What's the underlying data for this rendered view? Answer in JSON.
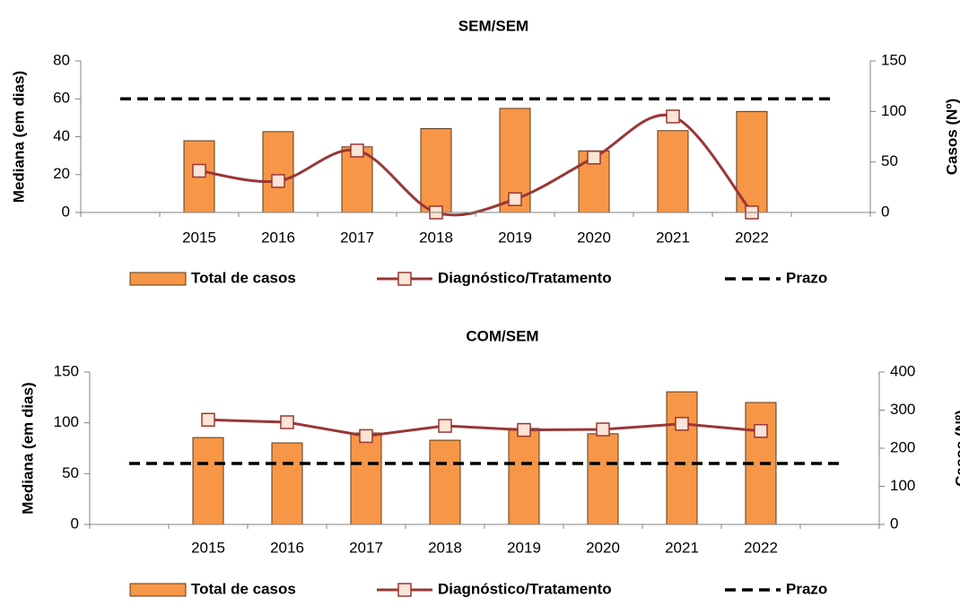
{
  "chart_data": [
    {
      "type": "bar-line",
      "title": "SEM/SEM",
      "ylabel": "Mediana (em dias)",
      "y2label": "Casos (Nº)",
      "categories": [
        null,
        "2015",
        "2016",
        "2017",
        "2018",
        "2019",
        "2020",
        "2021",
        "2022",
        null
      ],
      "series": [
        {
          "name": "Total de casos",
          "type": "bar",
          "axis": "y2",
          "color": "#f79646",
          "values": [
            null,
            71,
            80,
            65,
            83,
            103,
            61,
            81,
            100,
            null
          ]
        },
        {
          "name": "Diagnóstico/Tratamento",
          "type": "line",
          "smooth": true,
          "color": "#993737",
          "values": [
            null,
            22,
            16.6,
            32.7,
            0,
            7,
            29,
            50.7,
            0,
            null
          ]
        },
        {
          "name": "Prazo",
          "type": "threshold",
          "color": "#000000",
          "value": 60
        }
      ],
      "ylim": [
        0,
        80
      ],
      "yticks": [
        0,
        20,
        40,
        60,
        80
      ],
      "y2lim": [
        0,
        150
      ],
      "y2ticks": [
        0,
        50,
        100,
        150
      ]
    },
    {
      "type": "bar-line",
      "title": "COM/SEM",
      "ylabel": "Mediana (em dias)",
      "y2label": "Casos (Nº)",
      "categories": [
        null,
        "2015",
        "2016",
        "2017",
        "2018",
        "2019",
        "2020",
        "2021",
        "2022",
        null
      ],
      "series": [
        {
          "name": "Total de casos",
          "type": "bar",
          "axis": "y2",
          "color": "#f79646",
          "values": [
            null,
            228,
            214,
            240,
            221,
            252,
            238,
            348,
            320,
            null
          ]
        },
        {
          "name": "Diagnóstico/Tratamento",
          "type": "line",
          "smooth": false,
          "color": "#993737",
          "values": [
            null,
            103,
            100.6,
            87,
            97,
            93,
            93.5,
            99,
            92,
            null
          ]
        },
        {
          "name": "Prazo",
          "type": "threshold",
          "color": "#000000",
          "value": 60
        }
      ],
      "ylim": [
        0,
        150
      ],
      "yticks": [
        0,
        50,
        100,
        150
      ],
      "y2lim": [
        0,
        400
      ],
      "y2ticks": [
        0,
        100,
        200,
        300,
        400
      ]
    }
  ]
}
